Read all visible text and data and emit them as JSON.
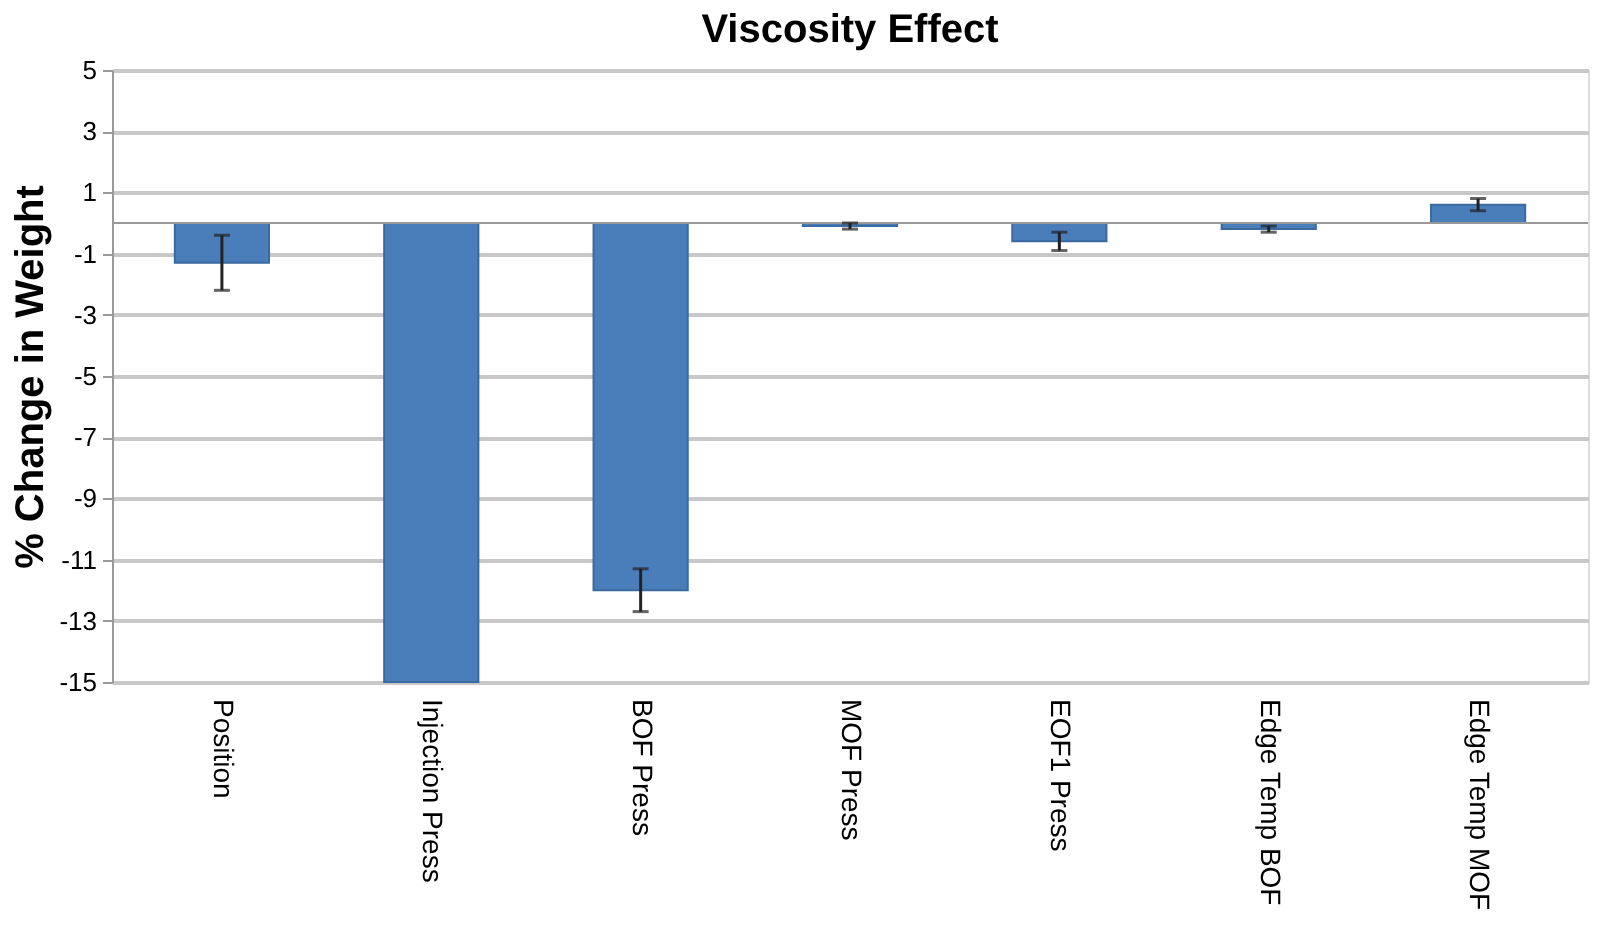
{
  "chart_data": {
    "type": "bar",
    "title": "Viscosity Effect",
    "ylabel": "% Change in Weight",
    "categories": [
      "Position",
      "Injection Press",
      "BOF Press",
      "MOF Press",
      "EOF1 Press",
      "Edge Temp BOF",
      "Edge Temp MOF"
    ],
    "values": [
      -1.3,
      -15,
      -12.0,
      -0.1,
      -0.6,
      -0.2,
      0.6
    ],
    "errors": [
      0.9,
      null,
      0.7,
      0.1,
      0.3,
      0.1,
      0.2
    ],
    "color": "#4a7ebb",
    "ylim": [
      -15,
      5
    ],
    "yticks": [
      5,
      3,
      1,
      -1,
      -3,
      -5,
      -7,
      -9,
      -11,
      -13,
      -15
    ],
    "grid": "y"
  }
}
